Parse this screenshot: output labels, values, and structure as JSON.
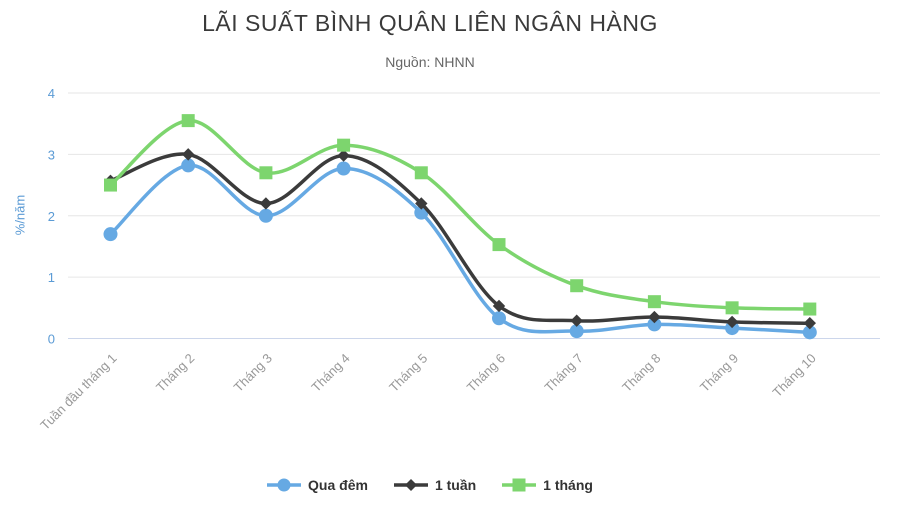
{
  "chart_data": {
    "type": "line",
    "title": "LÃI SUẤT BÌNH QUÂN LIÊN NGÂN HÀNG",
    "subtitle": "Nguồn: NHNN",
    "ylabel": "%/năm",
    "xlabel": "",
    "ylim": [
      0,
      4
    ],
    "yticks": [
      "0",
      "1",
      "2",
      "3",
      "4"
    ],
    "grid": "horizontal",
    "legend_position": "bottom",
    "categories": [
      "Tuần đầu tháng 1",
      "Tháng 2",
      "Tháng 3",
      "Tháng 4",
      "Tháng 5",
      "Tháng 6",
      "Tháng 7",
      "Tháng 8",
      "Tháng 9",
      "Tháng 10"
    ],
    "series": [
      {
        "name": "Qua đêm",
        "marker": "circle",
        "color": "#66a9e3",
        "values": [
          1.7,
          2.82,
          2.0,
          2.77,
          2.05,
          0.33,
          0.12,
          0.23,
          0.17,
          0.1
        ]
      },
      {
        "name": "1 tuần",
        "marker": "diamond",
        "color": "#3b3b3b",
        "values": [
          2.57,
          3.0,
          2.2,
          2.98,
          2.2,
          0.53,
          0.29,
          0.35,
          0.27,
          0.25
        ]
      },
      {
        "name": "1 tháng",
        "marker": "square",
        "color": "#7dd56e",
        "values": [
          2.5,
          3.55,
          2.7,
          3.15,
          2.7,
          1.53,
          0.86,
          0.6,
          0.5,
          0.48
        ]
      }
    ],
    "colors": {
      "grid": "#e6e6e6",
      "axis_line": "#ccd6eb",
      "y_tick": "#5b9bd5",
      "x_tick": "#999999",
      "title": "#3a3a3a",
      "subtitle": "#666666",
      "legend_text": "#333333"
    }
  }
}
